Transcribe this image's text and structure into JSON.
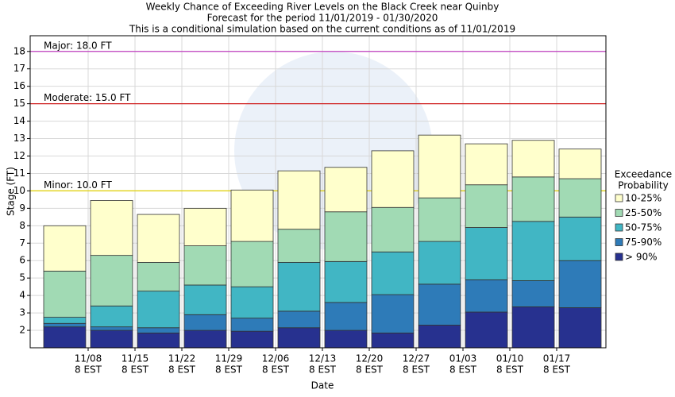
{
  "chart_data": {
    "type": "range-bar",
    "title": [
      "Weekly Chance of Exceeding River Levels on the Black Creek near Quinby",
      "Forecast for the period 11/01/2019 - 01/30/2020",
      "This is a conditional simulation based on the current conditions as of 11/01/2019"
    ],
    "y_label": "Stage (FT)",
    "x_label": "Date",
    "legend_title": [
      "Exceedance",
      "Probability"
    ],
    "xtick_labels": [
      [
        "11/08",
        "8 EST"
      ],
      [
        "11/15",
        "8 EST"
      ],
      [
        "11/22",
        "8 EST"
      ],
      [
        "11/29",
        "8 EST"
      ],
      [
        "12/06",
        "8 EST"
      ],
      [
        "12/13",
        "8 EST"
      ],
      [
        "12/20",
        "8 EST"
      ],
      [
        "12/27",
        "8 EST"
      ],
      [
        "01/03",
        "8 EST"
      ],
      [
        "01/10",
        "8 EST"
      ],
      [
        "01/17",
        "8 EST"
      ]
    ],
    "ylim": [
      1,
      18.9
    ],
    "yticks": [
      2,
      3,
      4,
      5,
      6,
      7,
      8,
      9,
      10,
      11,
      12,
      13,
      14,
      15,
      16,
      17,
      18
    ],
    "grid": true,
    "series": [
      {
        "name": "> 90%",
        "color": "#27318f",
        "values": [
          2.2,
          2.0,
          1.85,
          2.0,
          1.95,
          2.15,
          2.0,
          1.85,
          2.3,
          3.05,
          3.35,
          3.3
        ]
      },
      {
        "name": "75-90%",
        "color": "#2e7bb8",
        "values": [
          2.4,
          2.2,
          2.15,
          2.9,
          2.7,
          3.1,
          3.6,
          4.05,
          4.65,
          4.9,
          4.85,
          6.0
        ]
      },
      {
        "name": "50-75%",
        "color": "#41b6c4",
        "values": [
          2.75,
          3.4,
          4.25,
          4.6,
          4.5,
          5.9,
          5.95,
          6.5,
          7.1,
          7.9,
          8.25,
          8.5
        ]
      },
      {
        "name": "25-50%",
        "color": "#a1dab4",
        "values": [
          5.4,
          6.3,
          5.9,
          6.85,
          7.1,
          7.8,
          8.8,
          9.05,
          9.6,
          10.35,
          10.8,
          10.7
        ]
      },
      {
        "name": "10-25%",
        "color": "#ffffcc",
        "values": [
          8.0,
          9.45,
          8.65,
          9.0,
          10.05,
          11.15,
          11.35,
          12.3,
          13.2,
          12.7,
          12.9,
          12.4
        ]
      }
    ],
    "thresholds": [
      {
        "label": "Major: 18.0 FT",
        "value": 18,
        "color": "#c040c0"
      },
      {
        "label": "Moderate: 15.0 FT",
        "value": 15,
        "color": "#d02020"
      },
      {
        "label": "Minor: 10.0 FT",
        "value": 10,
        "color": "#e0d000"
      }
    ]
  }
}
